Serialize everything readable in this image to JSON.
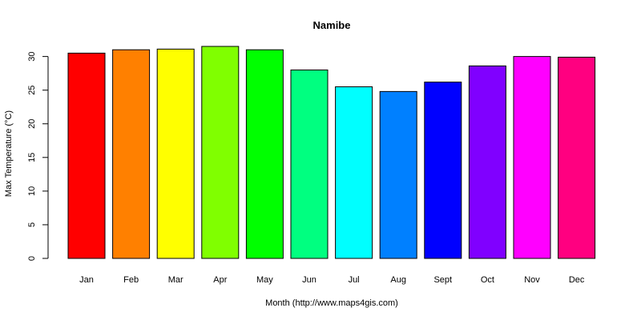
{
  "chart_data": {
    "type": "bar",
    "title": "Namibe",
    "xlabel": "Month (http://www.maps4gis.com)",
    "ylabel": "Max Temperature (°C)",
    "categories": [
      "Jan",
      "Feb",
      "Mar",
      "Apr",
      "May",
      "Jun",
      "Jul",
      "Aug",
      "Sept",
      "Oct",
      "Nov",
      "Dec"
    ],
    "values": [
      30.5,
      31.0,
      31.1,
      31.5,
      31.0,
      28.0,
      25.5,
      24.8,
      26.2,
      28.6,
      30.0,
      29.9
    ],
    "colors": [
      "#FF0000",
      "#FF8000",
      "#FFFF00",
      "#80FF00",
      "#00FF00",
      "#00FF80",
      "#00FFFF",
      "#0080FF",
      "#0000FF",
      "#8000FF",
      "#FF00FF",
      "#FF0080"
    ],
    "yticks": [
      0,
      5,
      10,
      15,
      20,
      25,
      30
    ],
    "ylim": [
      0,
      31.5
    ],
    "grid": false,
    "legend": "none"
  }
}
